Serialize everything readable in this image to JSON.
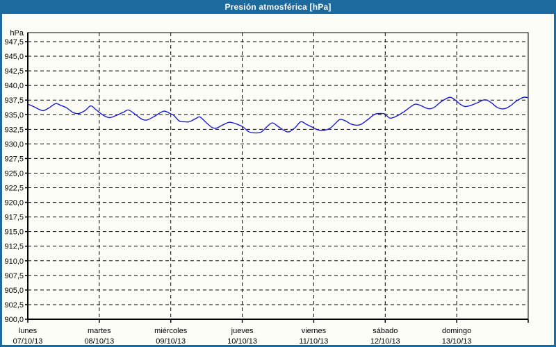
{
  "window": {
    "title": "Presión atmosférica [hPa]"
  },
  "colors": {
    "titlebar_bg": "#1d6a9e",
    "window_border": "#1d6a9e",
    "title_text": "#ffffff",
    "chart_bg": "#fdfdf8",
    "grid": "#000000",
    "axis": "#000000",
    "label_text": "#000000",
    "series_line": "#1c1cc8"
  },
  "chart_data": {
    "type": "line",
    "title": "Presión atmosférica [hPa]",
    "grid": "dashed",
    "legend": "none",
    "y_axis": {
      "unit_label": "hPa",
      "min": 900.0,
      "max": 949.0,
      "top_tick_value": 947.5,
      "tick_step": 2.5,
      "decimal_separator": ",",
      "ticks": [
        {
          "label": "947,5",
          "value": 947.5
        },
        {
          "label": "945,0",
          "value": 945.0
        },
        {
          "label": "942,5",
          "value": 942.5
        },
        {
          "label": "940,0",
          "value": 940.0
        },
        {
          "label": "937,5",
          "value": 937.5
        },
        {
          "label": "935,0",
          "value": 935.0
        },
        {
          "label": "932,5",
          "value": 932.5
        },
        {
          "label": "930,0",
          "value": 930.0
        },
        {
          "label": "927,5",
          "value": 927.5
        },
        {
          "label": "925,0",
          "value": 925.0
        },
        {
          "label": "922,5",
          "value": 922.5
        },
        {
          "label": "920,0",
          "value": 920.0
        },
        {
          "label": "917,5",
          "value": 917.5
        },
        {
          "label": "915,0",
          "value": 915.0
        },
        {
          "label": "912,5",
          "value": 912.5
        },
        {
          "label": "910,0",
          "value": 910.0
        },
        {
          "label": "907,5",
          "value": 907.5
        },
        {
          "label": "905,0",
          "value": 905.0
        },
        {
          "label": "902,5",
          "value": 902.5
        },
        {
          "label": "900,0",
          "value": 900.0
        }
      ]
    },
    "x_axis": {
      "span_days": 7,
      "days": [
        {
          "name": "lunes",
          "date": "07/10/13"
        },
        {
          "name": "martes",
          "date": "08/10/13"
        },
        {
          "name": "miércoles",
          "date": "09/10/13"
        },
        {
          "name": "jueves",
          "date": "10/10/13"
        },
        {
          "name": "viernes",
          "date": "11/10/13"
        },
        {
          "name": "sábado",
          "date": "12/10/13"
        },
        {
          "name": "domingo",
          "date": "13/10/13"
        }
      ]
    },
    "series": [
      {
        "name": "Presión atmosférica",
        "unit": "hPa",
        "points_t_hpa": [
          [
            0.0,
            936.8
          ],
          [
            0.08,
            936.4
          ],
          [
            0.16,
            935.9
          ],
          [
            0.22,
            935.7
          ],
          [
            0.3,
            936.2
          ],
          [
            0.39,
            936.9
          ],
          [
            0.46,
            936.6
          ],
          [
            0.54,
            936.2
          ],
          [
            0.63,
            935.4
          ],
          [
            0.71,
            935.2
          ],
          [
            0.8,
            935.7
          ],
          [
            0.88,
            936.5
          ],
          [
            0.95,
            935.9
          ],
          [
            1.0,
            935.4
          ],
          [
            1.07,
            934.8
          ],
          [
            1.15,
            934.5
          ],
          [
            1.26,
            935.0
          ],
          [
            1.35,
            935.5
          ],
          [
            1.41,
            935.8
          ],
          [
            1.51,
            935.0
          ],
          [
            1.6,
            934.2
          ],
          [
            1.67,
            934.1
          ],
          [
            1.77,
            934.7
          ],
          [
            1.9,
            935.6
          ],
          [
            1.99,
            935.2
          ],
          [
            2.04,
            934.9
          ],
          [
            2.12,
            933.9
          ],
          [
            2.19,
            933.8
          ],
          [
            2.26,
            933.8
          ],
          [
            2.36,
            934.4
          ],
          [
            2.41,
            934.6
          ],
          [
            2.5,
            933.6
          ],
          [
            2.58,
            932.8
          ],
          [
            2.64,
            932.7
          ],
          [
            2.72,
            933.2
          ],
          [
            2.82,
            933.7
          ],
          [
            2.92,
            933.4
          ],
          [
            3.01,
            932.9
          ],
          [
            3.09,
            932.1
          ],
          [
            3.16,
            931.9
          ],
          [
            3.26,
            932.0
          ],
          [
            3.35,
            933.0
          ],
          [
            3.42,
            933.6
          ],
          [
            3.5,
            933.0
          ],
          [
            3.6,
            932.2
          ],
          [
            3.66,
            932.1
          ],
          [
            3.74,
            932.8
          ],
          [
            3.82,
            933.8
          ],
          [
            3.89,
            933.4
          ],
          [
            3.99,
            932.8
          ],
          [
            4.06,
            932.4
          ],
          [
            4.13,
            932.3
          ],
          [
            4.23,
            932.7
          ],
          [
            4.31,
            933.6
          ],
          [
            4.37,
            934.2
          ],
          [
            4.45,
            933.9
          ],
          [
            4.52,
            933.4
          ],
          [
            4.6,
            933.2
          ],
          [
            4.67,
            933.4
          ],
          [
            4.76,
            934.2
          ],
          [
            4.86,
            935.1
          ],
          [
            4.96,
            935.2
          ],
          [
            5.0,
            935.1
          ],
          [
            5.04,
            934.6
          ],
          [
            5.08,
            934.4
          ],
          [
            5.15,
            934.7
          ],
          [
            5.25,
            935.4
          ],
          [
            5.35,
            936.3
          ],
          [
            5.42,
            936.8
          ],
          [
            5.49,
            936.6
          ],
          [
            5.56,
            936.2
          ],
          [
            5.62,
            936.0
          ],
          [
            5.69,
            936.3
          ],
          [
            5.78,
            937.2
          ],
          [
            5.88,
            937.9
          ],
          [
            5.93,
            937.9
          ],
          [
            6.0,
            937.3
          ],
          [
            6.06,
            936.7
          ],
          [
            6.12,
            936.4
          ],
          [
            6.2,
            936.6
          ],
          [
            6.3,
            937.1
          ],
          [
            6.37,
            937.5
          ],
          [
            6.42,
            937.5
          ],
          [
            6.49,
            937.0
          ],
          [
            6.56,
            936.3
          ],
          [
            6.63,
            936.0
          ],
          [
            6.69,
            936.1
          ],
          [
            6.76,
            936.6
          ],
          [
            6.83,
            937.3
          ],
          [
            6.9,
            937.8
          ],
          [
            6.95,
            938.0
          ],
          [
            7.0,
            937.9
          ]
        ]
      }
    ]
  }
}
